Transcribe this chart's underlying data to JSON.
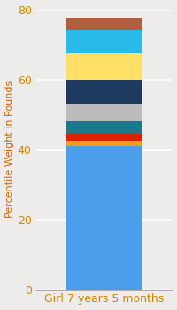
{
  "category": "Girl 7 years 5 months",
  "segments": [
    {
      "value": 41.0,
      "color": "#4A9EEA"
    },
    {
      "value": 1.5,
      "color": "#F0A020"
    },
    {
      "value": 2.0,
      "color": "#DD2200"
    },
    {
      "value": 3.5,
      "color": "#1A7A8C"
    },
    {
      "value": 5.0,
      "color": "#BBBBBB"
    },
    {
      "value": 7.0,
      "color": "#1E3A5F"
    },
    {
      "value": 7.5,
      "color": "#FFE066"
    },
    {
      "value": 6.5,
      "color": "#28BAE8"
    },
    {
      "value": 3.5,
      "color": "#B2603C"
    }
  ],
  "ylabel": "Percentile Weight in Pounds",
  "ylim": [
    0,
    80
  ],
  "yticks": [
    0,
    20,
    40,
    60,
    80
  ],
  "xlabel_color": "#CC8800",
  "ylabel_color": "#CC6600",
  "tick_color": "#CC8800",
  "background_color": "#EEECEA",
  "bar_width": 0.55,
  "grid_color": "#FFFFFF",
  "grid_linewidth": 1.2,
  "ylabel_fontsize": 8,
  "xlabel_fontsize": 9,
  "tick_fontsize": 9,
  "figsize": [
    2.0,
    3.5
  ],
  "dpi": 100
}
